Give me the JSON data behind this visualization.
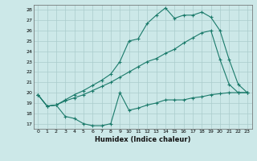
{
  "xlabel": "Humidex (Indice chaleur)",
  "bg_color": "#cce8e8",
  "line_color": "#1a7a6a",
  "grid_color": "#aacccc",
  "x_values": [
    0,
    1,
    2,
    3,
    4,
    5,
    6,
    7,
    8,
    9,
    10,
    11,
    12,
    13,
    14,
    15,
    16,
    17,
    18,
    19,
    20,
    21,
    22,
    23
  ],
  "line_min": [
    19.8,
    18.7,
    18.8,
    17.7,
    17.5,
    17.0,
    16.8,
    16.8,
    17.0,
    20.0,
    18.3,
    18.5,
    18.8,
    19.0,
    19.3,
    19.3,
    19.3,
    19.5,
    19.6,
    19.8,
    19.9,
    20.0,
    20.0,
    20.0
  ],
  "line_avg": [
    19.8,
    18.7,
    18.8,
    19.2,
    19.5,
    19.8,
    20.2,
    20.6,
    21.0,
    21.5,
    22.0,
    22.5,
    23.0,
    23.3,
    23.8,
    24.2,
    24.8,
    25.3,
    25.8,
    26.0,
    23.2,
    20.8,
    20.0,
    20.0
  ],
  "line_max": [
    19.8,
    18.7,
    18.8,
    19.3,
    19.8,
    20.2,
    20.7,
    21.2,
    21.8,
    23.0,
    25.0,
    25.2,
    26.7,
    27.5,
    28.2,
    27.2,
    27.5,
    27.5,
    27.8,
    27.3,
    26.0,
    23.2,
    20.8,
    20.0
  ],
  "ylim": [
    16.5,
    28.5
  ],
  "xlim": [
    -0.5,
    23.5
  ],
  "yticks": [
    17,
    18,
    19,
    20,
    21,
    22,
    23,
    24,
    25,
    26,
    27,
    28
  ],
  "xticks": [
    0,
    1,
    2,
    3,
    4,
    5,
    6,
    7,
    8,
    9,
    10,
    11,
    12,
    13,
    14,
    15,
    16,
    17,
    18,
    19,
    20,
    21,
    22,
    23
  ]
}
